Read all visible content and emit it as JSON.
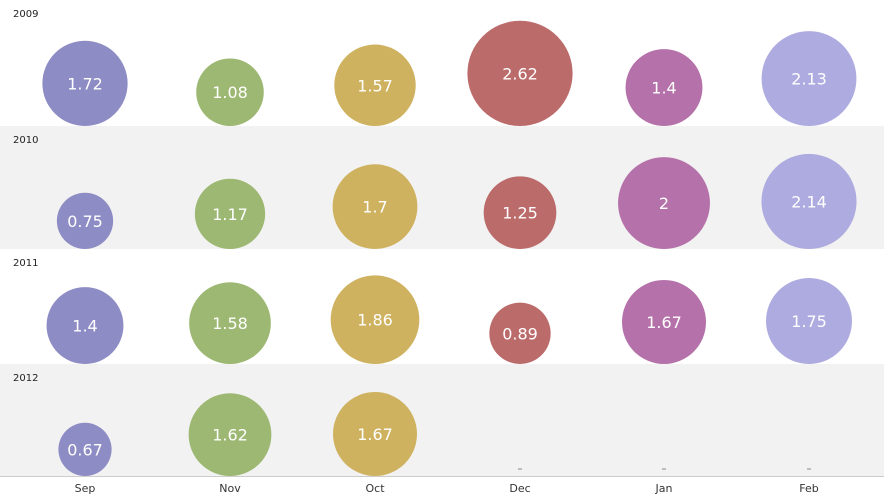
{
  "chart_data": {
    "type": "bubble",
    "categories": [
      "Sep",
      "Nov",
      "Oct",
      "Dec",
      "Jan",
      "Feb"
    ],
    "series": [
      {
        "name": "2009",
        "values": [
          1.72,
          1.08,
          1.57,
          2.62,
          1.4,
          2.13
        ]
      },
      {
        "name": "2010",
        "values": [
          0.75,
          1.17,
          1.7,
          1.25,
          2,
          2.14
        ]
      },
      {
        "name": "2011",
        "values": [
          1.4,
          1.58,
          1.86,
          0.89,
          1.67,
          1.75
        ]
      },
      {
        "name": "2012",
        "values": [
          0.67,
          1.62,
          1.67,
          null,
          null,
          null
        ]
      }
    ],
    "category_colors": [
      "#8e8cc4",
      "#9db872",
      "#cfb25f",
      "#bc6b6b",
      "#b571a9",
      "#aeabe0"
    ],
    "band_colors": [
      "#ffffff",
      "#f2f2f2"
    ],
    "grid": false
  }
}
